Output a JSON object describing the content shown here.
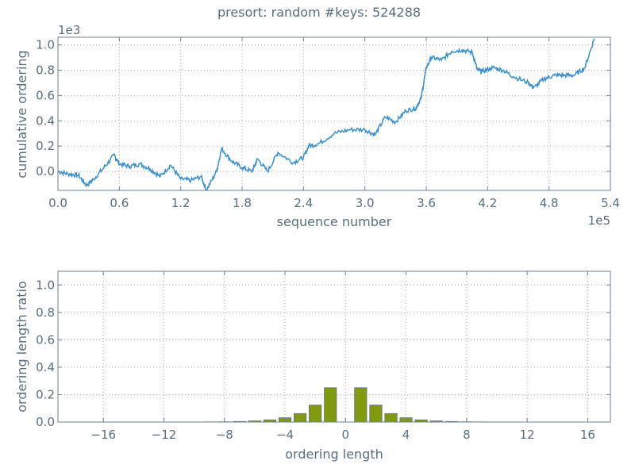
{
  "title": "presort: random #keys: 524288",
  "colors": {
    "line": "#3a8fd0",
    "bar": "#7f9a0c",
    "bar_edge": "#5a6e7a",
    "text": "#5a6e7a"
  },
  "chart_data": [
    {
      "type": "line",
      "xlabel": "sequence number",
      "ylabel": "cumulative ordering",
      "x_offset_label": "1e5",
      "y_offset_label": "1e3",
      "xlim": [
        0,
        540000
      ],
      "ylim": [
        -150,
        1060
      ],
      "xticks": [
        0,
        60000,
        120000,
        180000,
        240000,
        300000,
        360000,
        420000,
        480000,
        540000
      ],
      "xtick_labels": [
        "0.0",
        "0.6",
        "1.2",
        "1.8",
        "2.4",
        "3.0",
        "3.6",
        "4.2",
        "4.8",
        "5.4"
      ],
      "yticks": [
        0,
        200,
        400,
        600,
        800,
        1000
      ],
      "ytick_labels": [
        "0.0",
        "0.2",
        "0.4",
        "0.6",
        "0.8",
        "1.0"
      ],
      "grid": true,
      "x": [
        0,
        10000,
        20000,
        28000,
        35000,
        45000,
        55000,
        60000,
        70000,
        80000,
        90000,
        100000,
        110000,
        120000,
        130000,
        140000,
        145000,
        155000,
        160000,
        170000,
        180000,
        190000,
        195000,
        205000,
        215000,
        230000,
        240000,
        245000,
        255000,
        270000,
        285000,
        300000,
        310000,
        320000,
        330000,
        340000,
        350000,
        355000,
        360000,
        365000,
        375000,
        385000,
        395000,
        405000,
        410000,
        415000,
        425000,
        435000,
        445000,
        460000,
        465000,
        475000,
        485000,
        495000,
        505000,
        515000,
        524288
      ],
      "y": [
        0,
        -20,
        -30,
        -110,
        -60,
        30,
        130,
        60,
        40,
        60,
        20,
        -40,
        50,
        -60,
        -70,
        -40,
        -150,
        0,
        180,
        80,
        30,
        0,
        100,
        0,
        150,
        70,
        110,
        200,
        220,
        300,
        330,
        330,
        290,
        430,
        390,
        480,
        500,
        580,
        820,
        900,
        880,
        950,
        960,
        940,
        800,
        790,
        820,
        800,
        750,
        700,
        660,
        730,
        760,
        760,
        760,
        820,
        1050
      ]
    },
    {
      "type": "bar",
      "xlabel": "ordering length",
      "ylabel": "ordering length ratio",
      "xlim": [
        -19,
        17.5
      ],
      "ylim": [
        0,
        1.1
      ],
      "xticks": [
        -16,
        -12,
        -8,
        -4,
        0,
        4,
        8,
        12,
        16
      ],
      "xtick_labels": [
        "−16",
        "−12",
        "−8",
        "−4",
        "0",
        "4",
        "8",
        "12",
        "16"
      ],
      "yticks": [
        0,
        0.2,
        0.4,
        0.6,
        0.8,
        1.0
      ],
      "ytick_labels": [
        "0.0",
        "0.2",
        "0.4",
        "0.6",
        "0.8",
        "1.0"
      ],
      "grid": true,
      "categories": [
        -12,
        -11,
        -10,
        -9,
        -8,
        -7,
        -6,
        -5,
        -4,
        -3,
        -2,
        -1,
        1,
        2,
        3,
        4,
        5,
        6,
        7,
        8,
        9,
        10,
        11,
        12
      ],
      "values": [
        0.0001,
        0.0002,
        0.0005,
        0.001,
        0.002,
        0.004,
        0.008,
        0.016,
        0.031,
        0.062,
        0.124,
        0.25,
        0.25,
        0.124,
        0.062,
        0.031,
        0.016,
        0.008,
        0.004,
        0.002,
        0.001,
        0.0005,
        0.0002,
        0.0001
      ]
    }
  ]
}
